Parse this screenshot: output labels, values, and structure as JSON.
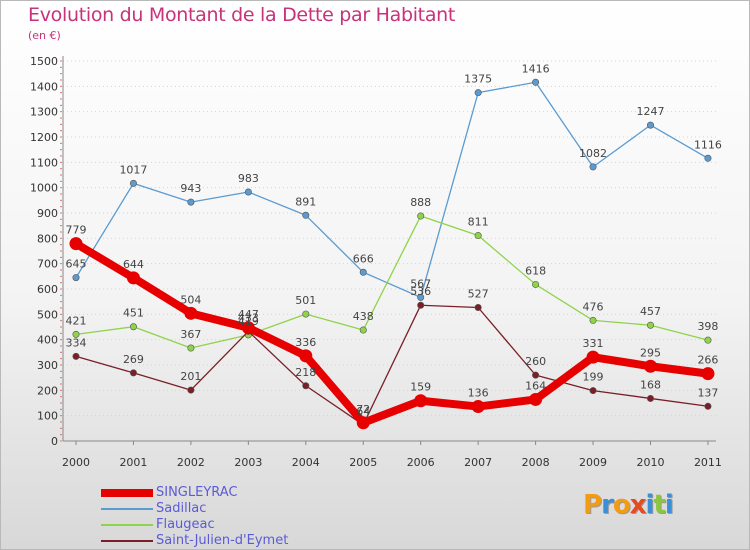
{
  "chart_data": {
    "type": "line",
    "title": "Evolution du Montant de la Dette par Habitant",
    "subtitle": "(en €)",
    "xlabel": "",
    "ylabel": "",
    "categories": [
      "2000",
      "2001",
      "2002",
      "2003",
      "2004",
      "2005",
      "2006",
      "2007",
      "2008",
      "2009",
      "2010",
      "2011"
    ],
    "ylim": [
      0,
      1500
    ],
    "yticks": [
      0,
      100,
      200,
      300,
      400,
      500,
      600,
      700,
      800,
      900,
      1000,
      1100,
      1200,
      1300,
      1400,
      1500
    ],
    "grid": true,
    "legend_position": "bottom-left",
    "series": [
      {
        "name": "SINGLEYRAC",
        "color": "#e60000",
        "values": [
          779,
          644,
          504,
          447,
          336,
          72,
          159,
          136,
          164,
          331,
          295,
          266
        ]
      },
      {
        "name": "Sadillac",
        "color": "#5b9bd0",
        "values": [
          645,
          1017,
          943,
          983,
          891,
          666,
          567,
          1375,
          1416,
          1082,
          1247,
          1116
        ]
      },
      {
        "name": "Flaugeac",
        "color": "#8fd34a",
        "values": [
          421,
          451,
          367,
          419,
          501,
          438,
          888,
          811,
          618,
          476,
          457,
          398
        ]
      },
      {
        "name": "Saint-Julien-d'Eymet",
        "color": "#7a1f28",
        "values": [
          334,
          269,
          201,
          433,
          218,
          64,
          536,
          527,
          260,
          199,
          168,
          137
        ]
      }
    ]
  },
  "logo": {
    "text": "Proxiti",
    "letters": [
      {
        "ch": "P",
        "color": "#f39c12"
      },
      {
        "ch": "r",
        "color": "#3a8fd8"
      },
      {
        "ch": "o",
        "color": "#f39c12"
      },
      {
        "ch": "x",
        "color": "#e8491d"
      },
      {
        "ch": "i",
        "color": "#3a8fd8"
      },
      {
        "ch": "t",
        "color": "#8cc63f"
      },
      {
        "ch": "i",
        "color": "#3a8fd8"
      }
    ]
  }
}
